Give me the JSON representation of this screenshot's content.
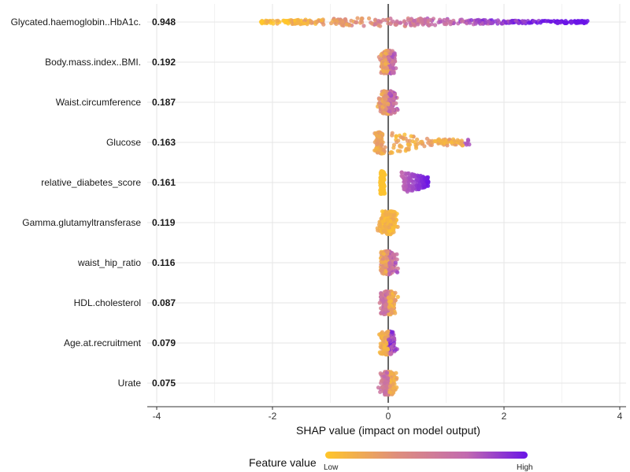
{
  "chart_data": {
    "type": "scatter",
    "subtype": "shap_beeswarm_summary",
    "xlabel": "SHAP value (impact on model output)",
    "xlim": [
      -4,
      4.05
    ],
    "xticks": [
      -4,
      -2,
      0,
      2,
      4
    ],
    "xtick_labels": [
      "-4",
      "-2",
      "0",
      "2",
      "4"
    ],
    "grid": true,
    "features": [
      {
        "name": "Glycated.haemoglobin..HbA1c.",
        "importance": "0.948",
        "min": -2.2,
        "max": 3.45,
        "spread": 0.9
      },
      {
        "name": "Body.mass.index..BMI.",
        "importance": "0.192",
        "min": -0.45,
        "max": 0.52,
        "spread": 0.2
      },
      {
        "name": "Waist.circumference",
        "importance": "0.187",
        "min": -0.38,
        "max": 0.6,
        "spread": 0.22
      },
      {
        "name": "Glucose",
        "importance": "0.163",
        "min": -0.25,
        "max": 1.42,
        "spread": 0.25
      },
      {
        "name": "relative_diabetes_score",
        "importance": "0.161",
        "min": -0.2,
        "max": 0.7,
        "spread": 0.35
      },
      {
        "name": "Gamma.glutamyltransferase",
        "importance": "0.119",
        "min": -0.45,
        "max": 0.38,
        "spread": 0.25
      },
      {
        "name": "waist_hip_ratio",
        "importance": "0.116",
        "min": -0.42,
        "max": 0.38,
        "spread": 0.22
      },
      {
        "name": "HDL.cholesterol",
        "importance": "0.087",
        "min": -0.32,
        "max": 0.35,
        "spread": 0.2
      },
      {
        "name": "Age.at.recruitment",
        "importance": "0.079",
        "min": -0.32,
        "max": 0.42,
        "spread": 0.2
      },
      {
        "name": "Urate",
        "importance": "0.075",
        "min": -0.32,
        "max": 0.3,
        "spread": 0.2
      }
    ],
    "legend": {
      "title": "Feature value",
      "low_label": "Low",
      "high_label": "High",
      "colors": [
        "#ffc62a",
        "#df8f7c",
        "#c26ab0",
        "#6a14e6"
      ],
      "position": "bottom"
    }
  }
}
